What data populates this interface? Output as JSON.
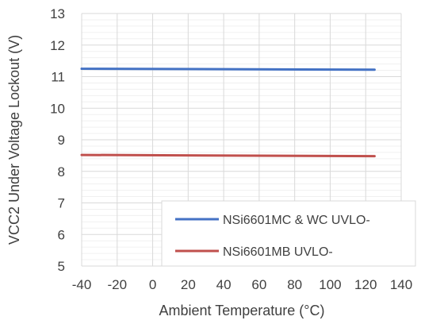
{
  "chart_data": {
    "type": "line",
    "title": "",
    "xlabel": "Ambient Temperature (°C)",
    "ylabel": "VCC2 Under Voltage Lockout (V)",
    "xlim": [
      -40,
      140
    ],
    "ylim": [
      5,
      13
    ],
    "x_ticks": [
      "-40",
      "-20",
      "0",
      "20",
      "40",
      "60",
      "80",
      "100",
      "120",
      "140"
    ],
    "y_ticks": [
      "5",
      "6",
      "7",
      "8",
      "9",
      "10",
      "11",
      "12",
      "13"
    ],
    "x_major_step": 20,
    "y_major_step": 1,
    "y_minor_step": 0.2,
    "grid": true,
    "legend_position": "bottom-right",
    "series": [
      {
        "name": "NSi6601MC & WC UVLO-",
        "color": "#4472c4",
        "x": [
          -40,
          125
        ],
        "y": [
          11.25,
          11.22
        ]
      },
      {
        "name": "NSi6601MB UVLO-",
        "color": "#c0504d",
        "x": [
          -40,
          125
        ],
        "y": [
          8.52,
          8.48
        ]
      }
    ]
  }
}
